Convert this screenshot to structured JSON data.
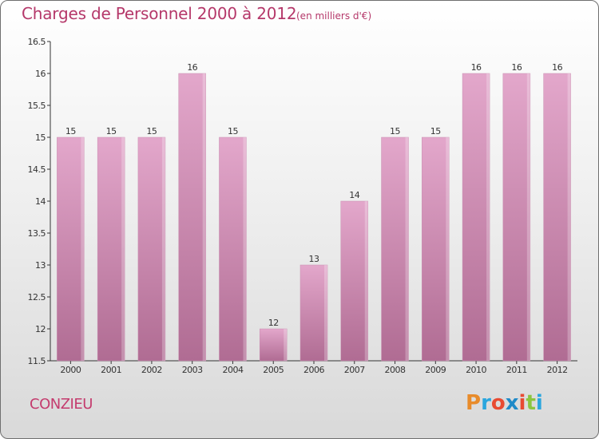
{
  "header": {
    "title": "Charges de Personnel 2000 à 2012",
    "subtitle": "(en milliers d'€)"
  },
  "footer": {
    "commune": "CONZIEU",
    "logo": "Proxiti"
  },
  "colors": {
    "title": "#b5386a",
    "bar_top": "#e3a7cb",
    "bar_bottom": "#b06c93",
    "logo_letters": [
      "#e88b2a",
      "#2aa6de",
      "#e84b32",
      "#1f8ac8",
      "#e84b32",
      "#8bc53f",
      "#2aa6de"
    ]
  },
  "chart_data": {
    "type": "bar",
    "categories": [
      "2000",
      "2001",
      "2002",
      "2003",
      "2004",
      "2005",
      "2006",
      "2007",
      "2008",
      "2009",
      "2010",
      "2011",
      "2012"
    ],
    "values": [
      15,
      15,
      15,
      16,
      15,
      12,
      13,
      14,
      15,
      15,
      16,
      16,
      16
    ],
    "data_labels": [
      "15",
      "15",
      "15",
      "16",
      "15",
      "12",
      "13",
      "14",
      "15",
      "15",
      "16",
      "16",
      "16"
    ],
    "ylim": [
      11.5,
      16.5
    ],
    "yticks": [
      "11.5",
      "12",
      "12.5",
      "13",
      "13.5",
      "14",
      "14.5",
      "15",
      "15.5",
      "16",
      "16.5"
    ],
    "grid": false,
    "title": "Charges de Personnel 2000 à 2012",
    "xlabel": "",
    "ylabel": ""
  }
}
